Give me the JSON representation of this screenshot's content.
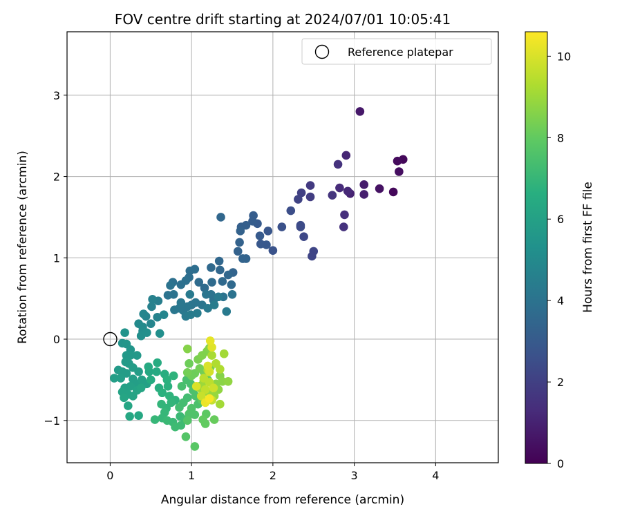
{
  "chart_data": {
    "type": "scatter",
    "title": "FOV centre drift starting at 2024/07/01 10:05:41",
    "xlabel": "Angular distance from reference (arcmin)",
    "ylabel": "Rotation from reference (arcmin)",
    "xlim": [
      -0.53,
      4.77
    ],
    "ylim": [
      -1.52,
      3.78
    ],
    "xticks": [
      0,
      1,
      2,
      3,
      4
    ],
    "yticks": [
      -1,
      0,
      1,
      2,
      3
    ],
    "xtick_labels": [
      "0",
      "1",
      "2",
      "3",
      "4"
    ],
    "ytick_labels": [
      "−1",
      "0",
      "1",
      "2",
      "3"
    ],
    "grid": true,
    "legend": {
      "label": "Reference platepar",
      "placement": "top-right"
    },
    "reference_point": {
      "x": 0,
      "y": 0
    },
    "colorbar": {
      "label": "Hours from first FF file",
      "colormap": "viridis",
      "range": [
        0,
        10.6
      ],
      "ticks": [
        0,
        2,
        4,
        6,
        8,
        10
      ],
      "tick_labels": [
        "0",
        "2",
        "4",
        "6",
        "8",
        "10"
      ]
    },
    "points": [
      {
        "x": 3.48,
        "y": 1.81,
        "c": 0.2
      },
      {
        "x": 3.6,
        "y": 2.21,
        "c": 0.2
      },
      {
        "x": 3.53,
        "y": 2.19,
        "c": 0.3
      },
      {
        "x": 3.55,
        "y": 2.06,
        "c": 0.4
      },
      {
        "x": 3.31,
        "y": 1.85,
        "c": 0.5
      },
      {
        "x": 3.07,
        "y": 2.8,
        "c": 0.7
      },
      {
        "x": 3.12,
        "y": 1.9,
        "c": 0.8
      },
      {
        "x": 3.12,
        "y": 1.78,
        "c": 0.9
      },
      {
        "x": 2.95,
        "y": 1.79,
        "c": 1.0
      },
      {
        "x": 2.9,
        "y": 2.26,
        "c": 1.1
      },
      {
        "x": 2.92,
        "y": 1.82,
        "c": 1.2
      },
      {
        "x": 2.82,
        "y": 1.86,
        "c": 1.3
      },
      {
        "x": 2.88,
        "y": 1.53,
        "c": 1.4
      },
      {
        "x": 2.87,
        "y": 1.38,
        "c": 1.5
      },
      {
        "x": 2.8,
        "y": 2.15,
        "c": 1.5
      },
      {
        "x": 2.73,
        "y": 1.77,
        "c": 1.6
      },
      {
        "x": 2.46,
        "y": 1.89,
        "c": 1.8
      },
      {
        "x": 2.46,
        "y": 1.75,
        "c": 1.9
      },
      {
        "x": 2.35,
        "y": 1.8,
        "c": 2.0
      },
      {
        "x": 2.31,
        "y": 1.72,
        "c": 2.1
      },
      {
        "x": 2.5,
        "y": 1.08,
        "c": 2.2
      },
      {
        "x": 2.48,
        "y": 1.02,
        "c": 2.2
      },
      {
        "x": 2.38,
        "y": 1.26,
        "c": 2.3
      },
      {
        "x": 2.34,
        "y": 1.4,
        "c": 2.4
      },
      {
        "x": 2.34,
        "y": 1.38,
        "c": 2.4
      },
      {
        "x": 2.22,
        "y": 1.58,
        "c": 2.5
      },
      {
        "x": 2.11,
        "y": 1.38,
        "c": 2.6
      },
      {
        "x": 2.0,
        "y": 1.09,
        "c": 2.7
      },
      {
        "x": 1.94,
        "y": 1.33,
        "c": 2.8
      },
      {
        "x": 1.92,
        "y": 1.16,
        "c": 2.9
      },
      {
        "x": 1.85,
        "y": 1.17,
        "c": 2.9
      },
      {
        "x": 1.84,
        "y": 1.27,
        "c": 3.0
      },
      {
        "x": 1.81,
        "y": 1.42,
        "c": 3.0
      },
      {
        "x": 1.76,
        "y": 1.52,
        "c": 3.1
      },
      {
        "x": 1.75,
        "y": 1.45,
        "c": 3.1
      },
      {
        "x": 1.67,
        "y": 1.4,
        "c": 3.2
      },
      {
        "x": 1.61,
        "y": 1.38,
        "c": 3.2
      },
      {
        "x": 1.6,
        "y": 1.33,
        "c": 3.3
      },
      {
        "x": 1.59,
        "y": 1.19,
        "c": 3.3
      },
      {
        "x": 1.57,
        "y": 1.08,
        "c": 3.3
      },
      {
        "x": 1.67,
        "y": 0.99,
        "c": 3.4
      },
      {
        "x": 1.63,
        "y": 0.99,
        "c": 3.4
      },
      {
        "x": 1.51,
        "y": 0.82,
        "c": 3.4
      },
      {
        "x": 1.45,
        "y": 0.79,
        "c": 3.5
      },
      {
        "x": 1.35,
        "y": 0.85,
        "c": 3.5
      },
      {
        "x": 1.34,
        "y": 0.96,
        "c": 3.5
      },
      {
        "x": 1.36,
        "y": 1.5,
        "c": 3.5
      },
      {
        "x": 1.24,
        "y": 0.88,
        "c": 3.6
      },
      {
        "x": 1.38,
        "y": 0.71,
        "c": 3.6
      },
      {
        "x": 1.49,
        "y": 0.67,
        "c": 3.6
      },
      {
        "x": 1.25,
        "y": 0.7,
        "c": 3.7
      },
      {
        "x": 1.16,
        "y": 0.63,
        "c": 3.7
      },
      {
        "x": 1.09,
        "y": 0.7,
        "c": 3.7
      },
      {
        "x": 1.04,
        "y": 0.86,
        "c": 3.8
      },
      {
        "x": 0.98,
        "y": 0.84,
        "c": 3.8
      },
      {
        "x": 0.97,
        "y": 0.76,
        "c": 3.8
      },
      {
        "x": 0.93,
        "y": 0.72,
        "c": 3.9
      },
      {
        "x": 0.87,
        "y": 0.67,
        "c": 3.9
      },
      {
        "x": 0.77,
        "y": 0.7,
        "c": 3.9
      },
      {
        "x": 0.74,
        "y": 0.66,
        "c": 4.0
      },
      {
        "x": 0.78,
        "y": 0.55,
        "c": 4.0
      },
      {
        "x": 0.71,
        "y": 0.54,
        "c": 4.0
      },
      {
        "x": 1.24,
        "y": 0.55,
        "c": 4.0
      },
      {
        "x": 1.27,
        "y": 0.48,
        "c": 4.0
      },
      {
        "x": 1.39,
        "y": 0.52,
        "c": 4.0
      },
      {
        "x": 1.5,
        "y": 0.55,
        "c": 4.0
      },
      {
        "x": 1.18,
        "y": 0.55,
        "c": 4.1
      },
      {
        "x": 1.13,
        "y": 0.42,
        "c": 4.1
      },
      {
        "x": 1.05,
        "y": 0.45,
        "c": 4.1
      },
      {
        "x": 1.0,
        "y": 0.42,
        "c": 4.1
      },
      {
        "x": 0.95,
        "y": 0.4,
        "c": 4.2
      },
      {
        "x": 0.9,
        "y": 0.35,
        "c": 4.2
      },
      {
        "x": 0.85,
        "y": 0.38,
        "c": 4.2
      },
      {
        "x": 0.79,
        "y": 0.36,
        "c": 4.2
      },
      {
        "x": 0.87,
        "y": 0.45,
        "c": 4.2
      },
      {
        "x": 0.93,
        "y": 0.28,
        "c": 4.3
      },
      {
        "x": 0.98,
        "y": 0.55,
        "c": 4.3
      },
      {
        "x": 1.2,
        "y": 0.38,
        "c": 4.3
      },
      {
        "x": 1.43,
        "y": 0.34,
        "c": 4.3
      },
      {
        "x": 1.33,
        "y": 0.52,
        "c": 4.3
      },
      {
        "x": 1.28,
        "y": 0.42,
        "c": 4.4
      },
      {
        "x": 1.07,
        "y": 0.32,
        "c": 4.4
      },
      {
        "x": 0.99,
        "y": 0.3,
        "c": 4.4
      },
      {
        "x": 0.59,
        "y": 0.47,
        "c": 4.5
      },
      {
        "x": 0.51,
        "y": 0.4,
        "c": 4.6
      },
      {
        "x": 0.52,
        "y": 0.49,
        "c": 4.6
      },
      {
        "x": 0.58,
        "y": 0.27,
        "c": 4.7
      },
      {
        "x": 0.44,
        "y": 0.28,
        "c": 4.7
      },
      {
        "x": 0.41,
        "y": 0.31,
        "c": 4.8
      },
      {
        "x": 0.5,
        "y": 0.19,
        "c": 4.8
      },
      {
        "x": 0.66,
        "y": 0.3,
        "c": 4.8
      },
      {
        "x": 0.35,
        "y": 0.19,
        "c": 5.0
      },
      {
        "x": 0.4,
        "y": 0.15,
        "c": 5.0
      },
      {
        "x": 0.4,
        "y": 0.1,
        "c": 5.1
      },
      {
        "x": 0.38,
        "y": 0.04,
        "c": 5.2
      },
      {
        "x": 0.45,
        "y": 0.08,
        "c": 5.2
      },
      {
        "x": 0.61,
        "y": 0.07,
        "c": 5.2
      },
      {
        "x": 0.18,
        "y": 0.08,
        "c": 5.4
      },
      {
        "x": 0.15,
        "y": -0.05,
        "c": 5.4
      },
      {
        "x": 0.2,
        "y": -0.06,
        "c": 5.5
      },
      {
        "x": 0.25,
        "y": -0.13,
        "c": 5.5
      },
      {
        "x": 0.25,
        "y": -0.2,
        "c": 5.6
      },
      {
        "x": 0.33,
        "y": -0.2,
        "c": 5.6
      },
      {
        "x": 0.2,
        "y": -0.2,
        "c": 5.6
      },
      {
        "x": 0.19,
        "y": -0.28,
        "c": 5.7
      },
      {
        "x": 0.23,
        "y": -0.3,
        "c": 5.7
      },
      {
        "x": 0.1,
        "y": -0.38,
        "c": 5.7
      },
      {
        "x": 0.15,
        "y": -0.4,
        "c": 5.8
      },
      {
        "x": 0.2,
        "y": -0.42,
        "c": 5.8
      },
      {
        "x": 0.28,
        "y": -0.35,
        "c": 5.8
      },
      {
        "x": 0.35,
        "y": -0.4,
        "c": 5.8
      },
      {
        "x": 0.05,
        "y": -0.48,
        "c": 5.9
      },
      {
        "x": 0.13,
        "y": -0.48,
        "c": 5.9
      },
      {
        "x": 0.28,
        "y": -0.49,
        "c": 5.9
      },
      {
        "x": 0.33,
        "y": -0.55,
        "c": 5.9
      },
      {
        "x": 0.39,
        "y": -0.5,
        "c": 6.0
      },
      {
        "x": 0.45,
        "y": -0.55,
        "c": 6.0
      },
      {
        "x": 0.25,
        "y": -0.58,
        "c": 6.0
      },
      {
        "x": 0.18,
        "y": -0.6,
        "c": 6.0
      },
      {
        "x": 0.15,
        "y": -0.65,
        "c": 6.1
      },
      {
        "x": 0.22,
        "y": -0.68,
        "c": 6.1
      },
      {
        "x": 0.28,
        "y": -0.7,
        "c": 6.1
      },
      {
        "x": 0.33,
        "y": -0.63,
        "c": 6.1
      },
      {
        "x": 0.38,
        "y": -0.6,
        "c": 6.2
      },
      {
        "x": 0.17,
        "y": -0.72,
        "c": 6.2
      },
      {
        "x": 0.22,
        "y": -0.82,
        "c": 6.2
      },
      {
        "x": 0.24,
        "y": -0.95,
        "c": 6.3
      },
      {
        "x": 0.35,
        "y": -0.94,
        "c": 6.3
      },
      {
        "x": 0.48,
        "y": -0.4,
        "c": 6.3
      },
      {
        "x": 0.47,
        "y": -0.34,
        "c": 6.4
      },
      {
        "x": 0.57,
        "y": -0.4,
        "c": 6.4
      },
      {
        "x": 0.58,
        "y": -0.29,
        "c": 6.5
      },
      {
        "x": 0.5,
        "y": -0.5,
        "c": 6.5
      },
      {
        "x": 0.6,
        "y": -0.6,
        "c": 6.6
      },
      {
        "x": 0.67,
        "y": -0.43,
        "c": 6.6
      },
      {
        "x": 0.7,
        "y": -0.5,
        "c": 6.7
      },
      {
        "x": 0.64,
        "y": -0.66,
        "c": 6.7
      },
      {
        "x": 0.71,
        "y": -0.58,
        "c": 6.7
      },
      {
        "x": 0.78,
        "y": -0.45,
        "c": 6.8
      },
      {
        "x": 0.73,
        "y": -0.7,
        "c": 6.8
      },
      {
        "x": 0.8,
        "y": -0.75,
        "c": 6.8
      },
      {
        "x": 0.63,
        "y": -0.8,
        "c": 6.9
      },
      {
        "x": 0.69,
        "y": -0.85,
        "c": 6.9
      },
      {
        "x": 0.75,
        "y": -0.78,
        "c": 6.9
      },
      {
        "x": 0.67,
        "y": -0.9,
        "c": 7.0
      },
      {
        "x": 0.55,
        "y": -0.99,
        "c": 7.0
      },
      {
        "x": 0.64,
        "y": -0.97,
        "c": 7.0
      },
      {
        "x": 0.7,
        "y": -1.0,
        "c": 7.1
      },
      {
        "x": 0.77,
        "y": -1.02,
        "c": 7.1
      },
      {
        "x": 0.86,
        "y": -0.95,
        "c": 7.1
      },
      {
        "x": 0.8,
        "y": -1.08,
        "c": 7.2
      },
      {
        "x": 0.87,
        "y": -1.06,
        "c": 7.2
      },
      {
        "x": 0.92,
        "y": -0.99,
        "c": 7.2
      },
      {
        "x": 0.85,
        "y": -0.84,
        "c": 7.3
      },
      {
        "x": 0.9,
        "y": -0.78,
        "c": 7.3
      },
      {
        "x": 0.95,
        "y": -0.72,
        "c": 7.3
      },
      {
        "x": 0.88,
        "y": -0.58,
        "c": 7.4
      },
      {
        "x": 0.94,
        "y": -0.5,
        "c": 7.4
      },
      {
        "x": 0.99,
        "y": -0.55,
        "c": 7.4
      },
      {
        "x": 1.02,
        "y": -0.63,
        "c": 7.5
      },
      {
        "x": 1.05,
        "y": -0.7,
        "c": 7.5
      },
      {
        "x": 1.08,
        "y": -0.8,
        "c": 7.5
      },
      {
        "x": 1.0,
        "y": -0.85,
        "c": 7.6
      },
      {
        "x": 0.97,
        "y": -0.92,
        "c": 7.6
      },
      {
        "x": 1.04,
        "y": -0.93,
        "c": 7.6
      },
      {
        "x": 0.95,
        "y": -1.0,
        "c": 7.7
      },
      {
        "x": 0.93,
        "y": -1.2,
        "c": 7.7
      },
      {
        "x": 1.04,
        "y": -1.32,
        "c": 7.8
      },
      {
        "x": 1.1,
        "y": -0.58,
        "c": 7.8
      },
      {
        "x": 1.13,
        "y": -0.75,
        "c": 7.9
      },
      {
        "x": 1.18,
        "y": -0.92,
        "c": 7.9
      },
      {
        "x": 1.14,
        "y": -0.99,
        "c": 8.0
      },
      {
        "x": 1.17,
        "y": -1.04,
        "c": 8.0
      },
      {
        "x": 1.25,
        "y": -0.75,
        "c": 8.0
      },
      {
        "x": 1.28,
        "y": -0.99,
        "c": 8.1
      },
      {
        "x": 1.2,
        "y": -0.5,
        "c": 8.1
      },
      {
        "x": 0.97,
        "y": -0.3,
        "c": 8.2
      },
      {
        "x": 1.04,
        "y": -0.42,
        "c": 8.2
      },
      {
        "x": 1.0,
        "y": -0.45,
        "c": 8.2
      },
      {
        "x": 0.95,
        "y": -0.41,
        "c": 8.3
      },
      {
        "x": 1.1,
        "y": -0.36,
        "c": 8.3
      },
      {
        "x": 1.15,
        "y": -0.4,
        "c": 8.3
      },
      {
        "x": 1.23,
        "y": -0.35,
        "c": 8.4
      },
      {
        "x": 1.08,
        "y": -0.25,
        "c": 8.4
      },
      {
        "x": 1.13,
        "y": -0.2,
        "c": 8.5
      },
      {
        "x": 1.19,
        "y": -0.15,
        "c": 8.5
      },
      {
        "x": 1.22,
        "y": -0.11,
        "c": 8.6
      },
      {
        "x": 0.95,
        "y": -0.12,
        "c": 8.6
      },
      {
        "x": 1.35,
        "y": -0.45,
        "c": 8.6
      },
      {
        "x": 1.3,
        "y": -0.55,
        "c": 8.7
      },
      {
        "x": 1.38,
        "y": -0.52,
        "c": 8.7
      },
      {
        "x": 1.45,
        "y": -0.52,
        "c": 8.8
      },
      {
        "x": 1.33,
        "y": -0.62,
        "c": 8.8
      },
      {
        "x": 1.28,
        "y": -0.7,
        "c": 8.9
      },
      {
        "x": 1.2,
        "y": -0.65,
        "c": 8.9
      },
      {
        "x": 1.15,
        "y": -0.52,
        "c": 9.0
      },
      {
        "x": 1.1,
        "y": -0.6,
        "c": 9.0
      },
      {
        "x": 1.35,
        "y": -0.8,
        "c": 9.1
      },
      {
        "x": 1.4,
        "y": -0.18,
        "c": 9.1
      },
      {
        "x": 1.25,
        "y": -0.2,
        "c": 9.2
      },
      {
        "x": 1.3,
        "y": -0.3,
        "c": 9.3
      },
      {
        "x": 1.35,
        "y": -0.37,
        "c": 9.3
      },
      {
        "x": 1.2,
        "y": -0.38,
        "c": 9.4
      },
      {
        "x": 1.15,
        "y": -0.48,
        "c": 9.5
      },
      {
        "x": 1.22,
        "y": -0.53,
        "c": 9.5
      },
      {
        "x": 1.17,
        "y": -0.62,
        "c": 9.6
      },
      {
        "x": 1.12,
        "y": -0.7,
        "c": 9.7
      },
      {
        "x": 1.25,
        "y": -0.75,
        "c": 9.7
      },
      {
        "x": 1.27,
        "y": -0.6,
        "c": 9.8
      },
      {
        "x": 1.22,
        "y": -0.4,
        "c": 9.9
      },
      {
        "x": 1.2,
        "y": -0.33,
        "c": 10.0
      },
      {
        "x": 1.25,
        "y": -0.1,
        "c": 10.1
      },
      {
        "x": 1.23,
        "y": -0.02,
        "c": 10.2
      },
      {
        "x": 1.17,
        "y": -0.78,
        "c": 10.3
      },
      {
        "x": 1.22,
        "y": -0.73,
        "c": 10.5
      },
      {
        "x": 1.06,
        "y": -0.58,
        "c": 10.0
      }
    ]
  }
}
